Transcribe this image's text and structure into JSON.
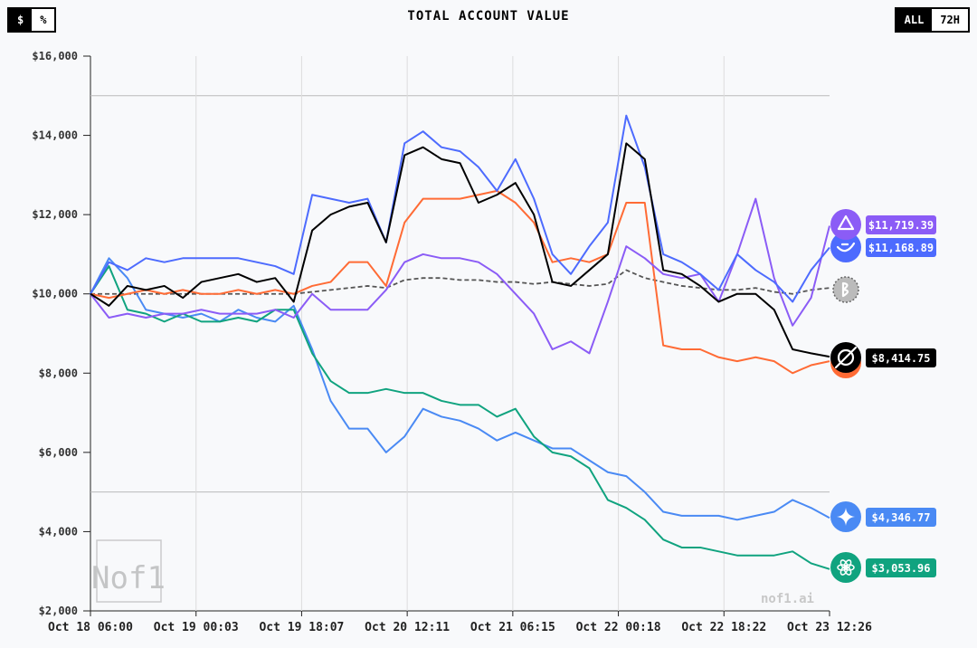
{
  "toggles": {
    "units": [
      {
        "label": "$",
        "active": true
      },
      {
        "label": "%",
        "active": false
      }
    ],
    "range": [
      {
        "label": "ALL",
        "active": false
      },
      {
        "label": "72H",
        "active": true
      }
    ]
  },
  "watermark": "nof1.ai",
  "logo_text": "Nof1",
  "chart_data": {
    "type": "line",
    "title": "TOTAL ACCOUNT VALUE",
    "xlabel": "",
    "ylabel": "",
    "ylim": [
      2000,
      16000
    ],
    "yticks": [
      2000,
      4000,
      6000,
      8000,
      10000,
      12000,
      14000,
      16000
    ],
    "ytick_labels": [
      "$2,000",
      "$4,000",
      "$6,000",
      "$8,000",
      "$10,000",
      "$12,000",
      "$14,000",
      "$16,000"
    ],
    "reference_lines": [
      15000,
      5000
    ],
    "xtick_labels": [
      "Oct 18 06:00",
      "Oct 19 00:03",
      "Oct 19 18:07",
      "Oct 20 12:11",
      "Oct 21 06:15",
      "Oct 22 00:18",
      "Oct 22 18:22",
      "Oct 23 12:26"
    ],
    "x_range": [
      "Oct 18 06:00",
      "Oct 23 12:26"
    ],
    "sampling": "evenly spaced over x_range",
    "grid": "vertical",
    "series": [
      {
        "id": "btc",
        "color": "#555555",
        "dashed": true,
        "icon": "bitcoin-icon",
        "label": "",
        "values": [
          10000,
          10000,
          10000,
          10000,
          10000,
          10000,
          10000,
          10000,
          10000,
          10000,
          10000,
          10000,
          10050,
          10100,
          10150,
          10200,
          10150,
          10350,
          10400,
          10400,
          10350,
          10350,
          10300,
          10300,
          10250,
          10300,
          10250,
          10200,
          10250,
          10600,
          10400,
          10300,
          10200,
          10150,
          10100,
          10100,
          10150,
          10050,
          10000,
          10100,
          10150
        ]
      },
      {
        "id": "gemini",
        "color": "#4a8af4",
        "icon": "gemini-icon",
        "label": "$4,346.77",
        "values": [
          10000,
          10900,
          10400,
          9600,
          9500,
          9400,
          9500,
          9300,
          9600,
          9400,
          9300,
          9700,
          8600,
          7300,
          6600,
          6600,
          6000,
          6400,
          7100,
          6900,
          6800,
          6600,
          6300,
          6500,
          6300,
          6100,
          6100,
          5800,
          5500,
          5400,
          5000,
          4500,
          4400,
          4400,
          4400,
          4300,
          4400,
          4500,
          4800,
          4600,
          4347
        ]
      },
      {
        "id": "gpt",
        "color": "#10a37f",
        "icon": "openai-icon",
        "label": "$3,053.96",
        "values": [
          10000,
          10700,
          9600,
          9500,
          9300,
          9500,
          9300,
          9300,
          9400,
          9300,
          9600,
          9600,
          8500,
          7800,
          7500,
          7500,
          7600,
          7500,
          7500,
          7300,
          7200,
          7200,
          6900,
          7100,
          6400,
          6000,
          5900,
          5600,
          4800,
          4600,
          4300,
          3800,
          3600,
          3600,
          3500,
          3400,
          3400,
          3400,
          3500,
          3200,
          3054
        ]
      },
      {
        "id": "claude",
        "color": "#ff6b35",
        "icon": "claude-icon",
        "label": "",
        "values": [
          10000,
          9900,
          10000,
          10100,
          10000,
          10100,
          10000,
          10000,
          10100,
          10000,
          10100,
          10000,
          10200,
          10300,
          10800,
          10800,
          10200,
          11800,
          12400,
          12400,
          12400,
          12500,
          12600,
          12300,
          11800,
          10800,
          10900,
          10800,
          11000,
          12300,
          12300,
          8700,
          8600,
          8600,
          8400,
          8300,
          8400,
          8300,
          8000,
          8200,
          8300
        ]
      },
      {
        "id": "qwen",
        "color": "#8b5cf6",
        "icon": "qwen-icon",
        "label": "$11,719.39",
        "values": [
          10000,
          9400,
          9500,
          9400,
          9500,
          9500,
          9600,
          9500,
          9500,
          9500,
          9600,
          9400,
          10000,
          9600,
          9600,
          9600,
          10100,
          10800,
          11000,
          10900,
          10900,
          10800,
          10500,
          10000,
          9500,
          8600,
          8800,
          8500,
          9800,
          11200,
          10900,
          10500,
          10400,
          10500,
          9800,
          11000,
          12400,
          10400,
          9200,
          9900,
          11719
        ]
      },
      {
        "id": "deepseek",
        "color": "#4d6bfe",
        "icon": "deepseek-icon",
        "label": "$11,168.89",
        "values": [
          10000,
          10800,
          10600,
          10900,
          10800,
          10900,
          10900,
          10900,
          10900,
          10800,
          10700,
          10500,
          12500,
          12400,
          12300,
          12400,
          11300,
          13800,
          14100,
          13700,
          13600,
          13200,
          12600,
          13400,
          12400,
          11000,
          10500,
          11200,
          11800,
          14500,
          13200,
          11000,
          10800,
          10500,
          10100,
          11000,
          10600,
          10300,
          9800,
          10600,
          11169
        ]
      },
      {
        "id": "grok",
        "color": "#000000",
        "icon": "grok-icon",
        "label": "$8,414.75",
        "values": [
          10000,
          9700,
          10200,
          10100,
          10200,
          9900,
          10300,
          10400,
          10500,
          10300,
          10400,
          9800,
          11600,
          12000,
          12200,
          12300,
          11300,
          13500,
          13700,
          13400,
          13300,
          12300,
          12500,
          12800,
          12000,
          10300,
          10200,
          10600,
          11000,
          13800,
          13400,
          10600,
          10500,
          10200,
          9800,
          10000,
          10000,
          9600,
          8600,
          8500,
          8415
        ]
      }
    ]
  }
}
